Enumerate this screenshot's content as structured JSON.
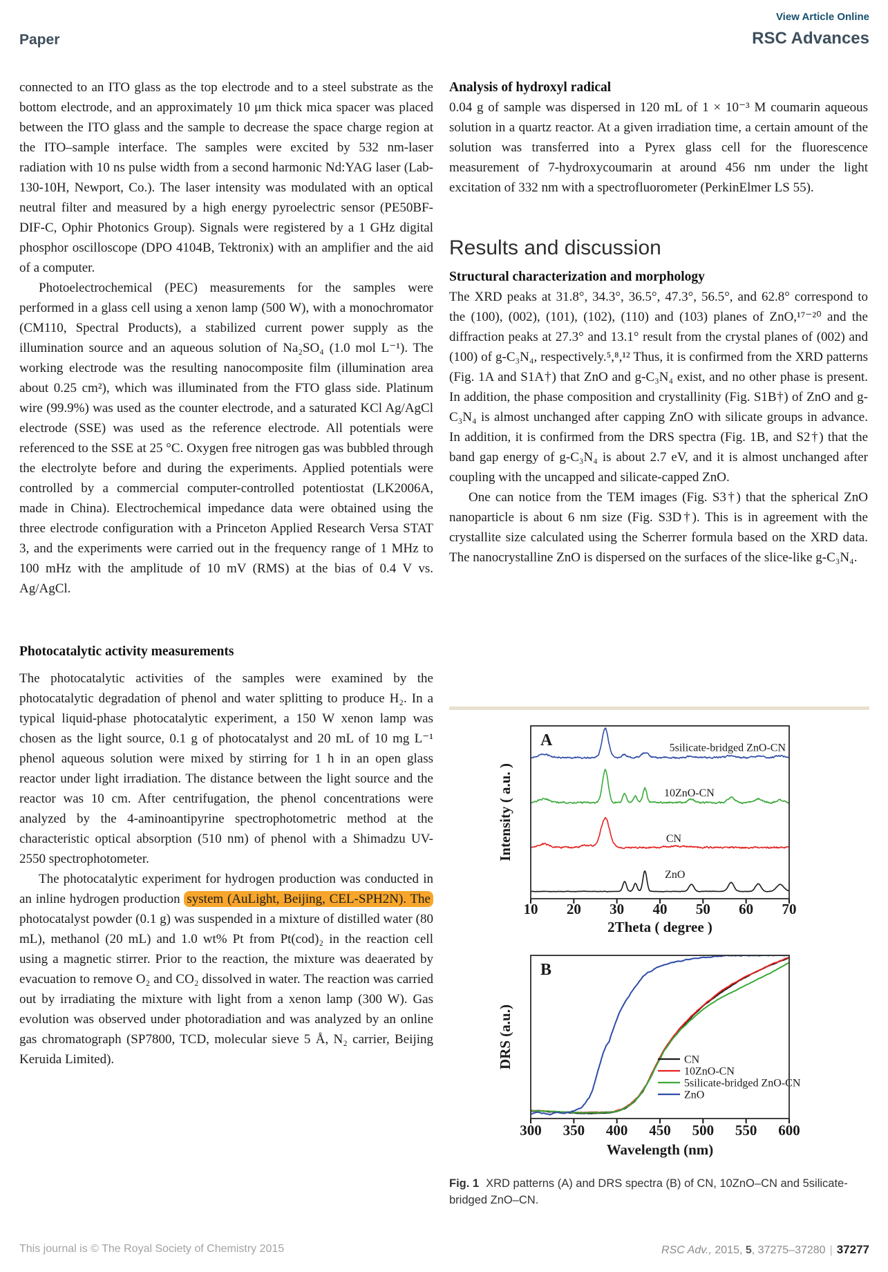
{
  "header": {
    "view_article_online": "View Article Online",
    "article_type": "Paper",
    "journal": "RSC Advances"
  },
  "left_column": {
    "para1": "connected to an ITO glass as the top electrode and to a steel substrate as the bottom electrode, and an approximately 10 μm thick mica spacer was placed between the ITO glass and the sample to decrease the space charge region at the ITO–sample interface. The samples were excited by 532 nm-laser radiation with 10 ns pulse width from a second harmonic Nd:YAG laser (Lab-130-10H, Newport, Co.). The laser intensity was modulated with an optical neutral filter and measured by a high energy pyroelectric sensor (PE50BF-DIF-C, Ophir Photonics Group). Signals were registered by a 1 GHz digital phosphor oscilloscope (DPO 4104B, Tektronix) with an amplifier and the aid of a computer.",
    "para2": "Photoelectrochemical (PEC) measurements for the samples were performed in a glass cell using a xenon lamp (500 W), with a monochromator (CM110, Spectral Products), a stabilized current power supply as the illumination source and an aqueous solution of Na₂SO₄ (1.0 mol L⁻¹). The working electrode was the resulting nanocomposite film (illumination area about 0.25 cm²), which was illuminated from the FTO glass side. Platinum wire (99.9%) was used as the counter electrode, and a saturated KCl Ag/AgCl electrode (SSE) was used as the reference electrode. All potentials were referenced to the SSE at 25 °C. Oxygen free nitrogen gas was bubbled through the electrolyte before and during the experiments. Applied potentials were controlled by a commercial computer-controlled potentiostat (LK2006A, made in China). Electrochemical impedance data were obtained using the three electrode configuration with a Princeton Applied Research Versa STAT 3, and the experiments were carried out in the frequency range of 1 MHz to 100 mHz with the amplitude of 10 mV (RMS) at the bias of 0.4 V vs. Ag/AgCl.",
    "section_title": "Photocatalytic activity measurements",
    "para3": "The photocatalytic activities of the samples were examined by the photocatalytic degradation of phenol and water splitting to produce H₂. In a typical liquid-phase photocatalytic experiment, a 150 W xenon lamp was chosen as the light source, 0.1 g of photocatalyst and 20 mL of 10 mg L⁻¹ phenol aqueous solution were mixed by stirring for 1 h in an open glass reactor under light irradiation. The distance between the light source and the reactor was 10 cm. After centrifugation, the phenol concentrations were analyzed by the 4-aminoantipyrine spectrophotometric method at the characteristic optical absorption (510 nm) of phenol with a Shimadzu UV-2550 spectrophotometer.",
    "para4_pre": "The photocatalytic experiment for hydrogen production was conducted in an inline hydrogen production ",
    "para4_highlight": "system (AuLight, Beijing, CEL-SPH2N). The",
    "para4_post": " photocatalyst powder (0.1 g) was suspended in a mixture of distilled water (80 mL), methanol (20 mL) and 1.0 wt% Pt from Pt(cod)₂ in the reaction cell using a magnetic stirrer. Prior to the reaction, the mixture was deaerated by evacuation to remove O₂ and CO₂ dissolved in water. The reaction was carried out by irradiating the mixture with light from a xenon lamp (300 W). Gas evolution was observed under photoradiation and was analyzed by an online gas chromatograph (SP7800, TCD, molecular sieve 5 Å, N₂ carrier, Beijing Keruida Limited).",
    "highlight_color": "#F7A62B"
  },
  "right_column": {
    "section1_title": "Analysis of hydroxyl radical",
    "para1": "0.04 g of sample was dispersed in 120 mL of 1 × 10⁻³ M coumarin aqueous solution in a quartz reactor. At a given irradiation time, a certain amount of the solution was transferred into a Pyrex glass cell for the fluorescence measurement of 7-hydroxycoumarin at around 456 nm under the light excitation of 332 nm with a spectrofluorometer (PerkinElmer LS 55).",
    "results_title": "Results and discussion",
    "subsection_title": "Structural characterization and morphology",
    "para2": "The XRD peaks at 31.8°, 34.3°, 36.5°, 47.3°, 56.5°, and 62.8° correspond to the (100), (002), (101), (102), (110) and (103) planes of ZnO,¹⁷⁻²⁰ and the diffraction peaks at 27.3° and 13.1° result from the crystal planes of (002) and (100) of g-C₃N₄, respectively.⁵,⁸,¹² Thus, it is confirmed from the XRD patterns (Fig. 1A and S1A†) that ZnO and g-C₃N₄ exist, and no other phase is present. In addition, the phase composition and crystallinity (Fig. S1B†) of ZnO and g-C₃N₄ is almost unchanged after capping ZnO with silicate groups in advance. In addition, it is confirmed from the DRS spectra (Fig. 1B, and S2†) that the band gap energy of g-C₃N₄ is about 2.7 eV, and it is almost unchanged after coupling with the uncapped and silicate-capped ZnO.",
    "para3": "One can notice from the TEM images (Fig. S3†) that the spherical ZnO nanoparticle is about 6 nm size (Fig. S3D†). This is in agreement with the crystallite size calculated using the Scherrer formula based on the XRD data. The nanocrystalline ZnO is dispersed on the surfaces of the slice-like g-C₃N₄."
  },
  "figure": {
    "caption_label": "Fig. 1",
    "caption_text": "XRD patterns (A) and DRS spectra (B) of CN, 10ZnO–CN and 5silicate-bridged ZnO–CN."
  },
  "footer": {
    "left": "This journal is © The Royal Society of Chemistry 2015",
    "right_journal": "RSC Adv.,",
    "right_mid": " 2015, ",
    "right_vol": "5",
    "right_pages": ", 37275–37280",
    "separator": "|",
    "page_number": "37277"
  },
  "chart_data": [
    {
      "type": "line",
      "panel": "A",
      "title": "XRD patterns",
      "xlabel": "2Theta ( degree )",
      "ylabel": "Intensity ( a.u. )",
      "xlim": [
        10,
        70
      ],
      "xticks": [
        10,
        20,
        30,
        40,
        50,
        60,
        70
      ],
      "grid": false,
      "legend_position": "in-plot-right-labels",
      "series": [
        {
          "name": "5silicate-bridged ZnO-CN",
          "color": "#2f4da8",
          "baseline": 0.184,
          "noise": 0.007,
          "peaks": [
            {
              "x": 13.1,
              "h": 0.02,
              "w": 1.2
            },
            {
              "x": 27.3,
              "h": 0.168,
              "w": 0.75
            },
            {
              "x": 31.8,
              "h": 0.018,
              "w": 0.5
            },
            {
              "x": 36.5,
              "h": 0.03,
              "w": 0.8
            },
            {
              "x": 47.3,
              "h": 0.008,
              "w": 0.8
            },
            {
              "x": 56.5,
              "h": 0.012,
              "w": 0.9
            },
            {
              "x": 62.8,
              "h": 0.008,
              "w": 0.9
            },
            {
              "x": 67.9,
              "h": 0.012,
              "w": 0.9
            }
          ],
          "label_x": 69.2,
          "label_y": 0.125,
          "label_anchor": "end"
        },
        {
          "name": "10ZnO-CN",
          "color": "#3aa93a",
          "baseline": 0.444,
          "noise": 0.007,
          "peaks": [
            {
              "x": 13.1,
              "h": 0.022,
              "w": 1.2
            },
            {
              "x": 27.3,
              "h": 0.192,
              "w": 0.65
            },
            {
              "x": 31.8,
              "h": 0.05,
              "w": 0.45
            },
            {
              "x": 34.3,
              "h": 0.038,
              "w": 0.4
            },
            {
              "x": 36.5,
              "h": 0.082,
              "w": 0.45
            },
            {
              "x": 47.3,
              "h": 0.02,
              "w": 0.7
            },
            {
              "x": 56.5,
              "h": 0.028,
              "w": 0.8
            },
            {
              "x": 62.8,
              "h": 0.02,
              "w": 0.8
            },
            {
              "x": 67.9,
              "h": 0.016,
              "w": 0.9
            }
          ],
          "label_x": 46.8,
          "label_y": 0.388,
          "label_anchor": "middle"
        },
        {
          "name": "CN",
          "color": "#e42320",
          "baseline": 0.704,
          "noise": 0.007,
          "peaks": [
            {
              "x": 13.1,
              "h": 0.02,
              "w": 1.4
            },
            {
              "x": 23.0,
              "h": 0.012,
              "w": 1.5
            },
            {
              "x": 27.3,
              "h": 0.172,
              "w": 1.0
            },
            {
              "x": 44.0,
              "h": 0.008,
              "w": 3.0
            }
          ],
          "label_x": 43.2,
          "label_y": 0.652,
          "label_anchor": "middle"
        },
        {
          "name": "ZnO",
          "color": "#1a1a1a",
          "baseline": 0.958,
          "noise": 0.002,
          "peaks": [
            {
              "x": 31.8,
              "h": 0.058,
              "w": 0.42
            },
            {
              "x": 34.3,
              "h": 0.046,
              "w": 0.4
            },
            {
              "x": 36.5,
              "h": 0.118,
              "w": 0.45
            },
            {
              "x": 47.3,
              "h": 0.042,
              "w": 0.55
            },
            {
              "x": 56.5,
              "h": 0.052,
              "w": 0.65
            },
            {
              "x": 62.8,
              "h": 0.044,
              "w": 0.65
            },
            {
              "x": 67.9,
              "h": 0.04,
              "w": 0.85
            }
          ],
          "label_x": 43.5,
          "label_y": 0.86,
          "label_anchor": "middle"
        }
      ]
    },
    {
      "type": "line",
      "panel": "B",
      "title": "DRS spectra",
      "xlabel": "Wavelength (nm)",
      "ylabel": "DRS (a.u.)",
      "xlim": [
        300,
        600
      ],
      "xticks": [
        300,
        350,
        400,
        450,
        500,
        550,
        600
      ],
      "grid": false,
      "legend_position": "inside-center-right",
      "legend": [
        {
          "label": "CN",
          "color": "#1a1a1a"
        },
        {
          "label": "10ZnO-CN",
          "color": "#e42320"
        },
        {
          "label": "5silicate-bridged ZnO-CN",
          "color": "#3aa93a"
        },
        {
          "label": "ZnO",
          "color": "#2f4da8"
        }
      ],
      "series": [
        {
          "name": "CN",
          "color": "#1a1a1a",
          "noise": 0.003,
          "points": [
            [
              300,
              0.045
            ],
            [
              310,
              0.048
            ],
            [
              320,
              0.042
            ],
            [
              330,
              0.038
            ],
            [
              340,
              0.036
            ],
            [
              350,
              0.034
            ],
            [
              360,
              0.032
            ],
            [
              370,
              0.032
            ],
            [
              380,
              0.033
            ],
            [
              390,
              0.035
            ],
            [
              400,
              0.043
            ],
            [
              410,
              0.062
            ],
            [
              420,
              0.1
            ],
            [
              430,
              0.165
            ],
            [
              440,
              0.26
            ],
            [
              450,
              0.375
            ],
            [
              460,
              0.46
            ],
            [
              470,
              0.525
            ],
            [
              480,
              0.585
            ],
            [
              490,
              0.64
            ],
            [
              500,
              0.69
            ],
            [
              510,
              0.73
            ],
            [
              520,
              0.77
            ],
            [
              530,
              0.805
            ],
            [
              540,
              0.838
            ],
            [
              550,
              0.868
            ],
            [
              560,
              0.895
            ],
            [
              570,
              0.92
            ],
            [
              580,
              0.944
            ],
            [
              590,
              0.966
            ],
            [
              600,
              0.985
            ]
          ]
        },
        {
          "name": "10ZnO-CN",
          "color": "#e42320",
          "noise": 0.003,
          "points": [
            [
              300,
              0.05
            ],
            [
              320,
              0.045
            ],
            [
              340,
              0.04
            ],
            [
              360,
              0.037
            ],
            [
              380,
              0.038
            ],
            [
              395,
              0.042
            ],
            [
              405,
              0.055
            ],
            [
              415,
              0.085
            ],
            [
              425,
              0.135
            ],
            [
              435,
              0.215
            ],
            [
              445,
              0.325
            ],
            [
              455,
              0.425
            ],
            [
              465,
              0.5
            ],
            [
              475,
              0.565
            ],
            [
              485,
              0.62
            ],
            [
              495,
              0.67
            ],
            [
              505,
              0.715
            ],
            [
              520,
              0.778
            ],
            [
              535,
              0.828
            ],
            [
              550,
              0.872
            ],
            [
              565,
              0.908
            ],
            [
              580,
              0.947
            ],
            [
              590,
              0.968
            ],
            [
              600,
              0.988
            ]
          ]
        },
        {
          "name": "5silicate-bridged ZnO-CN",
          "color": "#3aa93a",
          "noise": 0.003,
          "points": [
            [
              300,
              0.048
            ],
            [
              320,
              0.044
            ],
            [
              340,
              0.04
            ],
            [
              360,
              0.036
            ],
            [
              380,
              0.036
            ],
            [
              395,
              0.04
            ],
            [
              405,
              0.052
            ],
            [
              415,
              0.082
            ],
            [
              425,
              0.13
            ],
            [
              435,
              0.21
            ],
            [
              445,
              0.315
            ],
            [
              455,
              0.415
            ],
            [
              465,
              0.49
            ],
            [
              475,
              0.55
            ],
            [
              485,
              0.6
            ],
            [
              495,
              0.648
            ],
            [
              505,
              0.688
            ],
            [
              520,
              0.738
            ],
            [
              535,
              0.778
            ],
            [
              550,
              0.818
            ],
            [
              565,
              0.857
            ],
            [
              580,
              0.897
            ],
            [
              590,
              0.926
            ],
            [
              600,
              0.955
            ]
          ]
        },
        {
          "name": "ZnO",
          "color": "#2f4da8",
          "noise": 0.006,
          "points": [
            [
              300,
              0.025
            ],
            [
              308,
              0.04
            ],
            [
              315,
              0.03
            ],
            [
              322,
              0.025
            ],
            [
              330,
              0.035
            ],
            [
              338,
              0.03
            ],
            [
              345,
              0.04
            ],
            [
              352,
              0.05
            ],
            [
              358,
              0.065
            ],
            [
              363,
              0.09
            ],
            [
              368,
              0.13
            ],
            [
              372,
              0.18
            ],
            [
              376,
              0.25
            ],
            [
              380,
              0.33
            ],
            [
              384,
              0.4
            ],
            [
              388,
              0.45
            ],
            [
              391,
              0.47
            ],
            [
              394,
              0.52
            ],
            [
              397,
              0.565
            ],
            [
              400,
              0.61
            ],
            [
              404,
              0.66
            ],
            [
              408,
              0.7
            ],
            [
              412,
              0.735
            ],
            [
              416,
              0.77
            ],
            [
              420,
              0.8
            ],
            [
              425,
              0.835
            ],
            [
              430,
              0.868
            ],
            [
              436,
              0.893
            ],
            [
              442,
              0.912
            ],
            [
              450,
              0.933
            ],
            [
              460,
              0.951
            ],
            [
              470,
              0.963
            ],
            [
              480,
              0.973
            ],
            [
              490,
              0.981
            ],
            [
              500,
              0.987
            ],
            [
              515,
              0.993
            ],
            [
              530,
              0.997
            ],
            [
              545,
              1.0
            ],
            [
              560,
              1.0
            ],
            [
              580,
              1.0
            ],
            [
              600,
              1.0
            ]
          ]
        }
      ]
    }
  ]
}
